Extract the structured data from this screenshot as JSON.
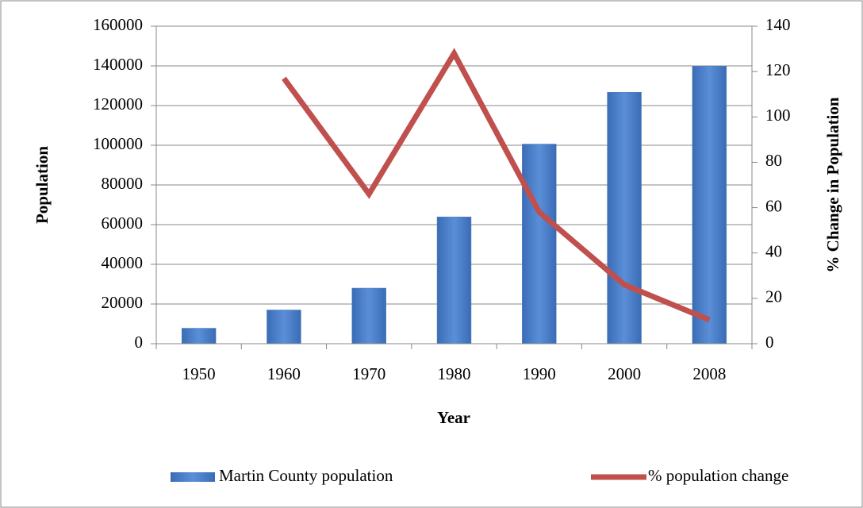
{
  "chart_data": {
    "type": "bar",
    "categories": [
      "1950",
      "1960",
      "1970",
      "1980",
      "1990",
      "2000",
      "2008"
    ],
    "series": [
      {
        "name": "Martin County population",
        "type": "bar",
        "color": "#4f81bd",
        "values": [
          7800,
          17000,
          28000,
          63900,
          100600,
          126700,
          139900
        ]
      },
      {
        "name": "% population change",
        "type": "line",
        "color": "#c0504d",
        "axis": "y2",
        "values": [
          null,
          117,
          66,
          128,
          58,
          26,
          10.5
        ]
      }
    ],
    "xlabel": "Year",
    "ylabel": "Population",
    "y2label": "% Change in Population",
    "ylim": [
      0,
      160000
    ],
    "yticks": [
      0,
      20000,
      40000,
      60000,
      80000,
      100000,
      120000,
      140000,
      160000
    ],
    "y2lim": [
      0,
      140
    ],
    "y2ticks": [
      0,
      20,
      40,
      60,
      80,
      100,
      120,
      140
    ],
    "grid": true,
    "legend": "bottom"
  }
}
